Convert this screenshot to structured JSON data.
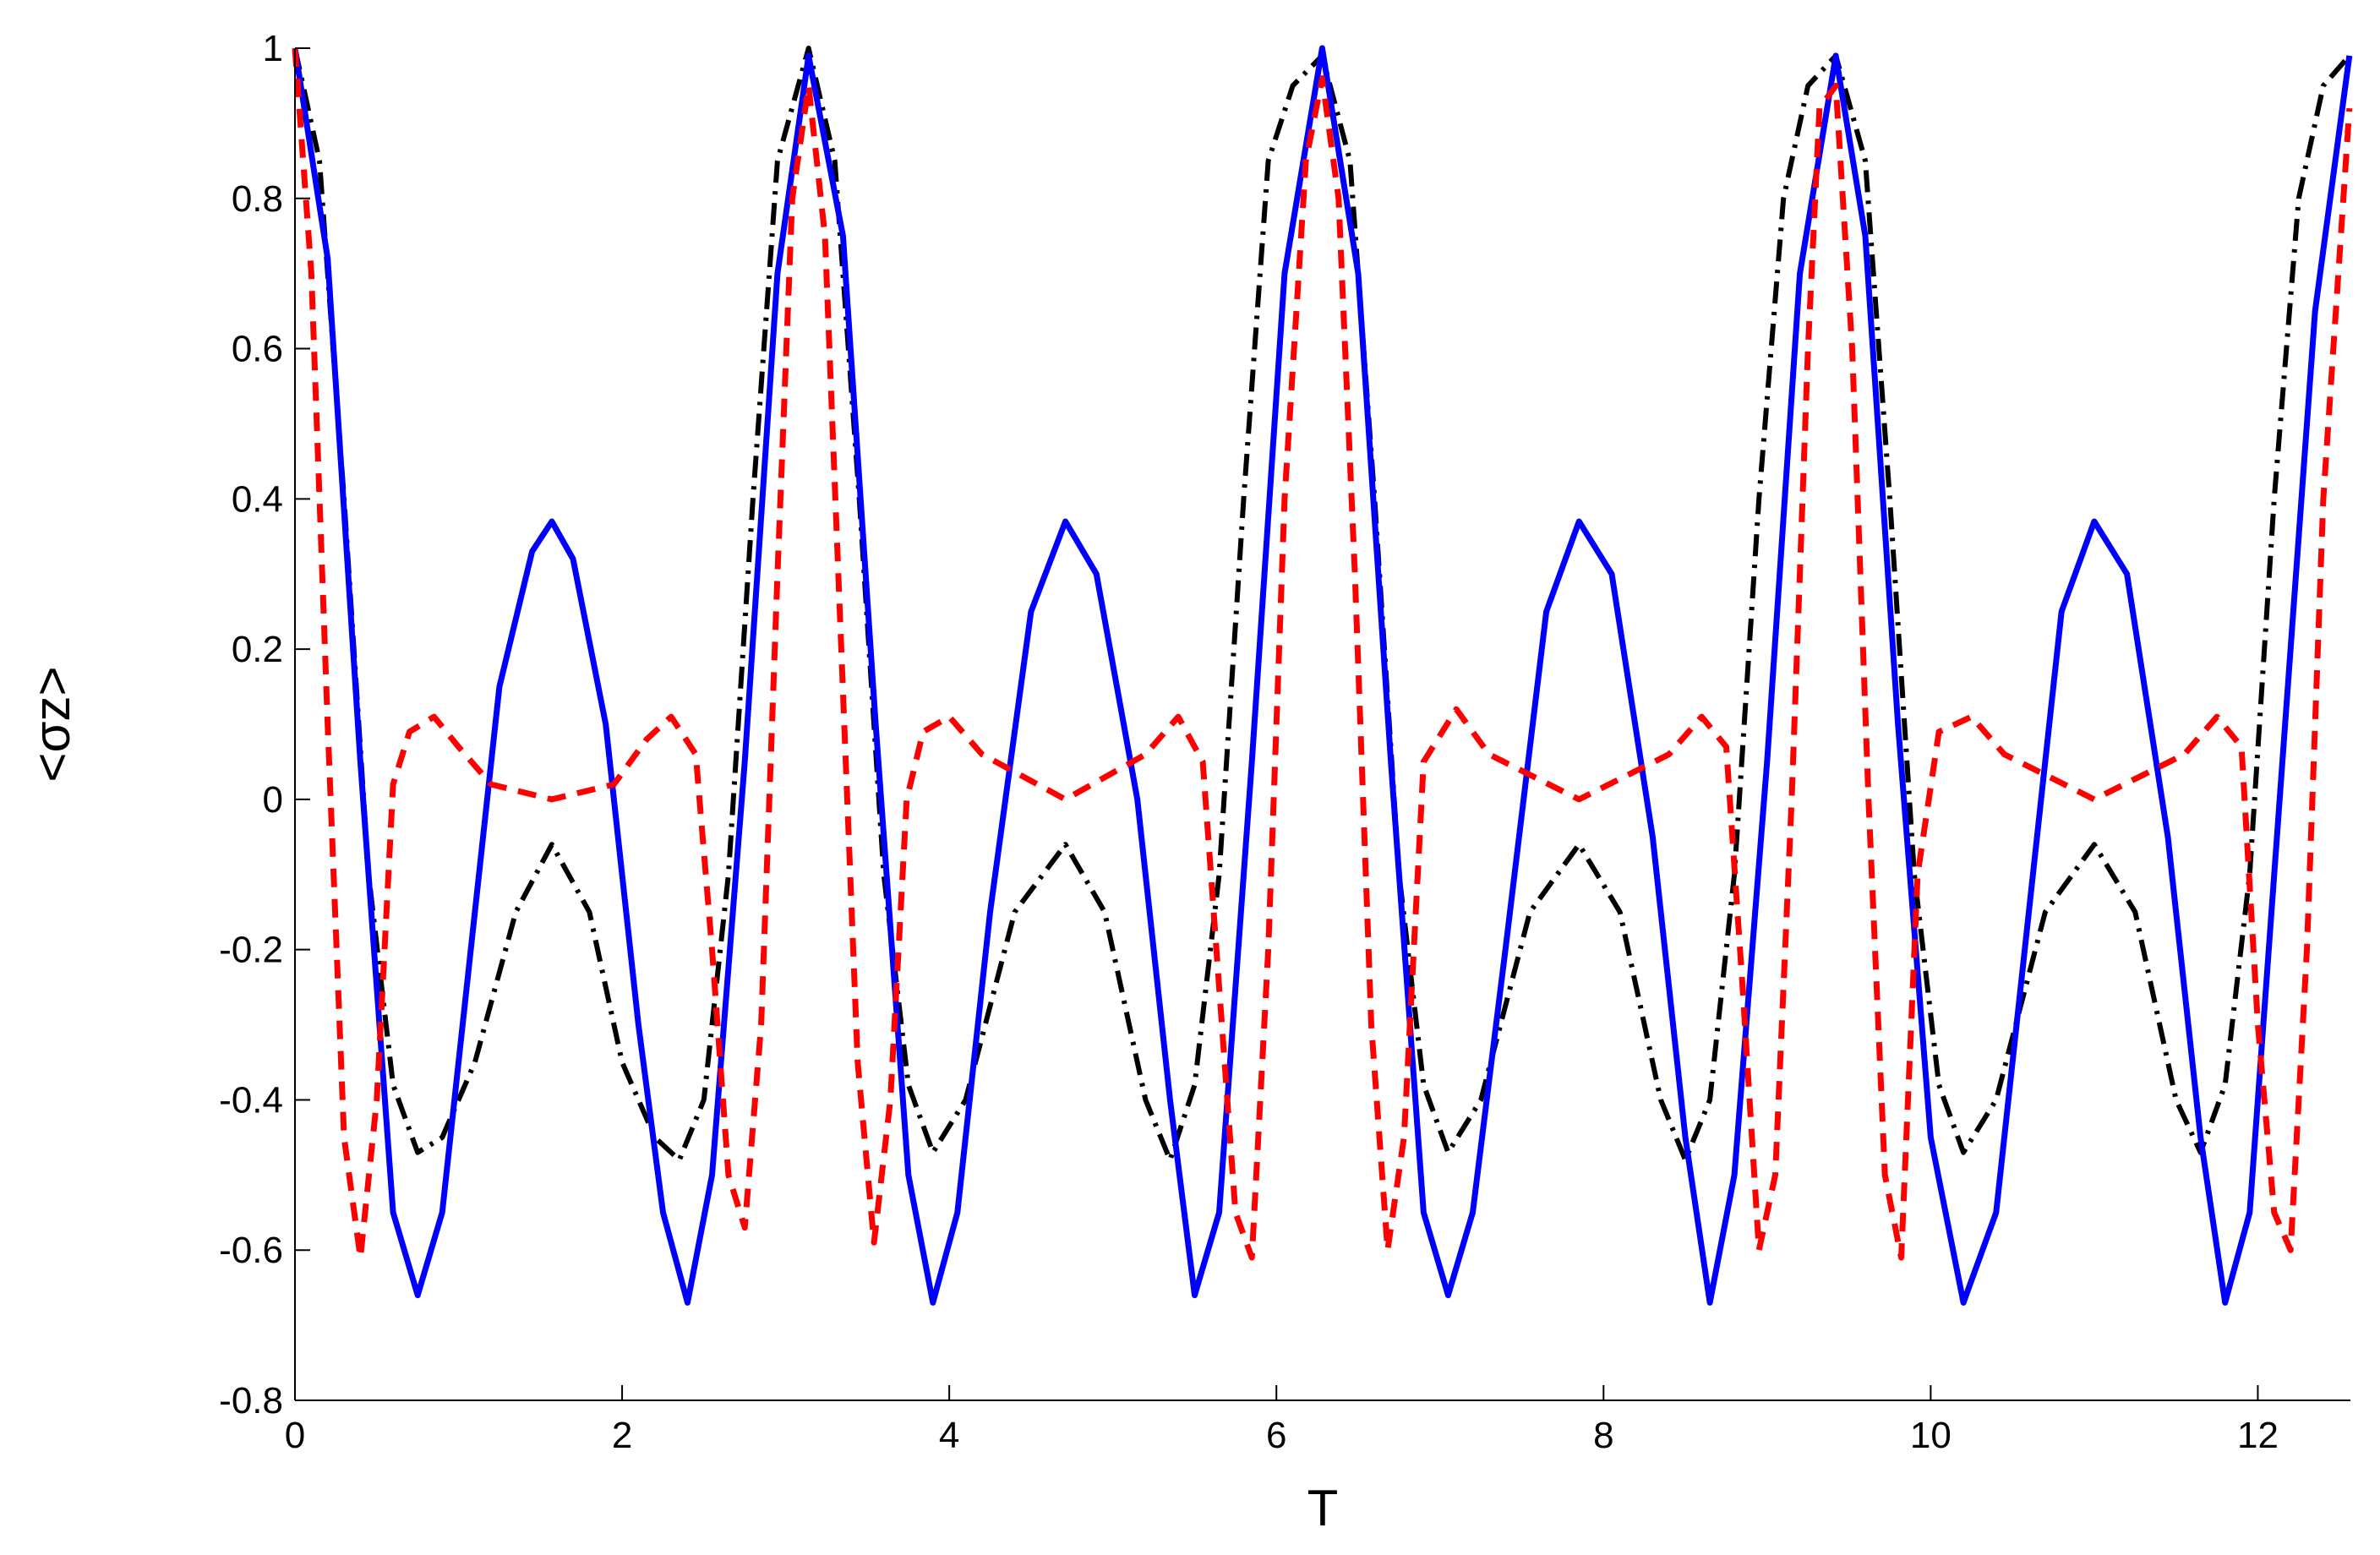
{
  "chart_data": {
    "type": "line",
    "title": "",
    "xlabel": "T",
    "ylabel": "<σz>",
    "xlim": [
      0,
      12.566
    ],
    "ylim": [
      -0.8,
      1
    ],
    "x_ticks": [
      0,
      2,
      4,
      6,
      8,
      10,
      12
    ],
    "x_tick_labels": [
      "0",
      "2",
      "4",
      "6",
      "8",
      "10",
      "12"
    ],
    "y_ticks": [
      -0.8,
      -0.6,
      -0.4,
      -0.2,
      0,
      0.2,
      0.4,
      0.6,
      0.8,
      1
    ],
    "y_tick_labels": [
      "-0.8",
      "-0.6",
      "-0.4",
      "-0.2",
      "0",
      "0.2",
      "0.4",
      "0.6",
      "0.8",
      "1"
    ],
    "grid": false,
    "legend": "none",
    "series": [
      {
        "color": "#0000ff",
        "line_style": "solid",
        "x": [
          0.0,
          0.2,
          0.4,
          0.6,
          0.75,
          0.9,
          1.05,
          1.25,
          1.45,
          1.57,
          1.7,
          1.9,
          2.1,
          2.25,
          2.4,
          2.55,
          2.75,
          2.95,
          3.14,
          3.35,
          3.55,
          3.75,
          3.9,
          4.05,
          4.25,
          4.5,
          4.71,
          4.9,
          5.15,
          5.35,
          5.5,
          5.65,
          5.85,
          6.05,
          6.28,
          6.5,
          6.7,
          6.9,
          7.05,
          7.2,
          7.4,
          7.65,
          7.85,
          8.05,
          8.3,
          8.5,
          8.65,
          8.8,
          9.0,
          9.2,
          9.42,
          9.6,
          9.8,
          10.0,
          10.2,
          10.4,
          10.6,
          10.8,
          11.0,
          11.2,
          11.45,
          11.65,
          11.8,
          11.95,
          12.15,
          12.35,
          12.56
        ],
        "y": [
          1.0,
          0.72,
          0.05,
          -0.55,
          -0.66,
          -0.55,
          -0.25,
          0.15,
          0.33,
          0.37,
          0.32,
          0.1,
          -0.3,
          -0.55,
          -0.67,
          -0.5,
          0.05,
          0.7,
          0.99,
          0.75,
          0.1,
          -0.5,
          -0.67,
          -0.55,
          -0.15,
          0.25,
          0.37,
          0.3,
          0.0,
          -0.4,
          -0.66,
          -0.55,
          0.05,
          0.7,
          1.0,
          0.7,
          0.05,
          -0.55,
          -0.66,
          -0.55,
          -0.2,
          0.25,
          0.37,
          0.3,
          -0.05,
          -0.45,
          -0.67,
          -0.5,
          0.05,
          0.7,
          0.99,
          0.75,
          0.1,
          -0.45,
          -0.67,
          -0.55,
          -0.15,
          0.25,
          0.37,
          0.3,
          -0.05,
          -0.45,
          -0.67,
          -0.55,
          0.05,
          0.65,
          0.99
        ]
      },
      {
        "color": "#000000",
        "line_style": "dash-dot",
        "x": [
          0.0,
          0.15,
          0.3,
          0.45,
          0.6,
          0.75,
          0.9,
          1.1,
          1.35,
          1.57,
          1.8,
          2.0,
          2.2,
          2.35,
          2.5,
          2.65,
          2.8,
          2.95,
          3.14,
          3.3,
          3.45,
          3.6,
          3.75,
          3.9,
          4.1,
          4.4,
          4.71,
          4.95,
          5.2,
          5.35,
          5.5,
          5.65,
          5.8,
          5.95,
          6.1,
          6.28,
          6.45,
          6.6,
          6.75,
          6.9,
          7.05,
          7.25,
          7.55,
          7.85,
          8.1,
          8.35,
          8.5,
          8.65,
          8.8,
          8.95,
          9.1,
          9.25,
          9.42,
          9.6,
          9.75,
          9.9,
          10.05,
          10.2,
          10.4,
          10.7,
          11.0,
          11.25,
          11.5,
          11.65,
          11.8,
          11.95,
          12.1,
          12.25,
          12.4,
          12.56
        ],
        "y": [
          1.0,
          0.85,
          0.4,
          -0.1,
          -0.38,
          -0.47,
          -0.45,
          -0.35,
          -0.15,
          -0.06,
          -0.15,
          -0.35,
          -0.45,
          -0.48,
          -0.4,
          -0.1,
          0.4,
          0.85,
          1.0,
          0.85,
          0.4,
          -0.1,
          -0.38,
          -0.47,
          -0.4,
          -0.15,
          -0.06,
          -0.15,
          -0.4,
          -0.48,
          -0.38,
          -0.1,
          0.4,
          0.85,
          0.95,
          0.99,
          0.85,
          0.4,
          -0.1,
          -0.38,
          -0.47,
          -0.4,
          -0.15,
          -0.06,
          -0.15,
          -0.4,
          -0.48,
          -0.4,
          -0.1,
          0.4,
          0.8,
          0.95,
          0.99,
          0.85,
          0.4,
          -0.1,
          -0.38,
          -0.47,
          -0.4,
          -0.15,
          -0.06,
          -0.15,
          -0.4,
          -0.47,
          -0.38,
          -0.1,
          0.4,
          0.8,
          0.95,
          0.99
        ]
      },
      {
        "color": "#ff0000",
        "line_style": "dashed",
        "x": [
          0.0,
          0.1,
          0.2,
          0.3,
          0.4,
          0.5,
          0.6,
          0.7,
          0.85,
          1.0,
          1.2,
          1.57,
          1.95,
          2.15,
          2.3,
          2.45,
          2.55,
          2.65,
          2.75,
          2.85,
          2.95,
          3.04,
          3.14,
          3.24,
          3.34,
          3.44,
          3.54,
          3.64,
          3.74,
          3.84,
          4.0,
          4.2,
          4.71,
          5.2,
          5.4,
          5.55,
          5.65,
          5.75,
          5.85,
          5.95,
          6.05,
          6.18,
          6.28,
          6.38,
          6.48,
          6.58,
          6.68,
          6.78,
          6.9,
          7.1,
          7.3,
          7.85,
          8.4,
          8.6,
          8.75,
          8.85,
          8.95,
          9.05,
          9.15,
          9.25,
          9.32,
          9.42,
          9.52,
          9.62,
          9.72,
          9.82,
          9.92,
          10.05,
          10.25,
          10.45,
          11.0,
          11.55,
          11.75,
          11.9,
          12.0,
          12.1,
          12.2,
          12.3,
          12.4,
          12.56
        ],
        "y": [
          1.0,
          0.7,
          0.1,
          -0.45,
          -0.61,
          -0.4,
          0.02,
          0.09,
          0.11,
          0.07,
          0.02,
          0.0,
          0.02,
          0.08,
          0.11,
          0.06,
          -0.2,
          -0.5,
          -0.57,
          -0.3,
          0.3,
          0.8,
          0.95,
          0.75,
          0.2,
          -0.35,
          -0.59,
          -0.4,
          0.0,
          0.09,
          0.11,
          0.06,
          0.0,
          0.06,
          0.11,
          0.05,
          -0.25,
          -0.55,
          -0.61,
          -0.2,
          0.4,
          0.85,
          0.96,
          0.8,
          0.3,
          -0.3,
          -0.6,
          -0.45,
          0.05,
          0.12,
          0.06,
          0.0,
          0.06,
          0.11,
          0.07,
          -0.25,
          -0.6,
          -0.5,
          0.0,
          0.6,
          0.92,
          0.95,
          0.6,
          0.0,
          -0.5,
          -0.61,
          -0.1,
          0.09,
          0.11,
          0.06,
          0.0,
          0.06,
          0.11,
          0.07,
          -0.3,
          -0.55,
          -0.6,
          -0.2,
          0.4,
          0.92
        ]
      }
    ]
  }
}
